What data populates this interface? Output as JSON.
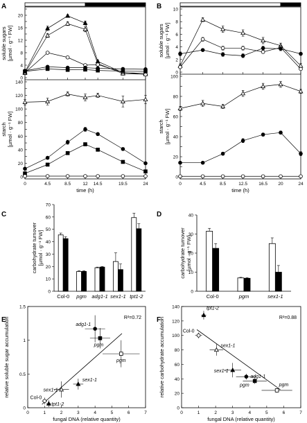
{
  "chart_data": [
    {
      "panel": "A",
      "type": "line",
      "x": [
        0,
        4.5,
        8.5,
        12,
        14.5,
        19.5,
        24
      ],
      "xlabel": "time (h)",
      "xticks": [
        0,
        4.5,
        8.5,
        12,
        14.5,
        19.5,
        24
      ],
      "xlim": [
        0,
        24
      ],
      "photoperiod": {
        "light": [
          0,
          12
        ],
        "dark": [
          12,
          24
        ]
      },
      "subplots": [
        {
          "ylabel": [
            "soluble sugars",
            "[µmol · g⁻¹ FW]"
          ],
          "ylim": [
            0,
            22
          ],
          "yticks": [
            0,
            2,
            4,
            6,
            8,
            10,
            12,
            14,
            16,
            18,
            20,
            22
          ],
          "series": [
            {
              "marker": "filled-triangle",
              "values": [
                1.8,
                15.8,
                19.8,
                17.5,
                5.2,
                1.6,
                1.4
              ],
              "err": [
                0.6,
                0.7,
                0.4,
                0.6,
                0.4,
                0.3,
                0.3
              ]
            },
            {
              "marker": "open-triangle",
              "values": [
                1.5,
                13.5,
                17.3,
                15.5,
                4.5,
                1.3,
                1.1
              ],
              "err": [
                0.4,
                0.6,
                0.6,
                0.8,
                0.4,
                0.3,
                0.3
              ]
            },
            {
              "marker": "open-circle",
              "values": [
                1.6,
                8.0,
                6.5,
                4.0,
                4.2,
                1.7,
                1.0
              ],
              "err": [
                0.3,
                0.3,
                0.4,
                0.3,
                0.4,
                0.3,
                0.3
              ]
            },
            {
              "marker": "filled-circle",
              "values": [
                2.2,
                3.5,
                3.2,
                3.2,
                3.0,
                2.8,
                2.7
              ],
              "err": [
                0.2,
                0.2,
                0.2,
                0.2,
                0.2,
                0.2,
                0.2
              ]
            },
            {
              "marker": "filled-square",
              "values": [
                2.0,
                2.8,
                2.5,
                2.6,
                2.3,
                2.1,
                2.0
              ],
              "err": [
                0.2,
                0.2,
                0.2,
                0.2,
                0.2,
                0.2,
                0.2
              ]
            }
          ]
        },
        {
          "ylabel": [
            "starch",
            "[µmol · g⁻¹ FW]"
          ],
          "ylim": [
            0,
            140
          ],
          "yticks": [
            0,
            10,
            20,
            30,
            40,
            50,
            60,
            70,
            80,
            90,
            100,
            110,
            120,
            130,
            140
          ],
          "series": [
            {
              "marker": "open-triangle",
              "values": [
                110,
                111,
                122,
                117,
                120,
                111,
                114
              ],
              "err": [
                4,
                5,
                3,
                5,
                3,
                8,
                6
              ]
            },
            {
              "marker": "filled-circle",
              "values": [
                12,
                28,
                51,
                70,
                63,
                41,
                20
              ],
              "err": [
                1.5,
                2,
                3,
                3,
                2,
                2,
                1.5
              ]
            },
            {
              "marker": "filled-square",
              "values": [
                5,
                18,
                35,
                48,
                40,
                22,
                8
              ],
              "err": [
                1,
                1.5,
                2,
                2,
                2,
                1.5,
                1
              ]
            },
            {
              "marker": "open-circle",
              "values": [
                1,
                1,
                1,
                1,
                1,
                1,
                1
              ],
              "err": [
                0.3,
                0.3,
                0.3,
                0.3,
                0.3,
                0.3,
                0.3
              ]
            }
          ]
        }
      ]
    },
    {
      "panel": "B",
      "type": "line",
      "x": [
        0,
        4.5,
        8.5,
        12.5,
        16.5,
        20,
        24
      ],
      "xlabel": "time (h)",
      "xticks": [
        0,
        4.5,
        8.5,
        12.5,
        16.5,
        20,
        24
      ],
      "xlim": [
        0,
        24
      ],
      "photoperiod": {
        "light": [
          0,
          20
        ],
        "dark": [
          20,
          24
        ]
      },
      "subplots": [
        {
          "ylabel": [
            "soluble sugars",
            "[µmol · g⁻¹ FW]"
          ],
          "ylim": [
            0,
            10
          ],
          "yticks": [
            0,
            1,
            2,
            3,
            4,
            5,
            6,
            7,
            8,
            9,
            10
          ],
          "series": [
            {
              "marker": "open-triangle",
              "values": [
                1.0,
                8.3,
                6.8,
                6.2,
                5.0,
                4.2,
                1.0
              ],
              "err": [
                0.3,
                0.3,
                0.5,
                0.5,
                0.5,
                0.4,
                0.4
              ]
            },
            {
              "marker": "open-circle",
              "values": [
                0.8,
                5.2,
                3.8,
                3.8,
                3.2,
                3.9,
                0.5
              ],
              "err": [
                0.2,
                0.3,
                0.3,
                0.3,
                0.2,
                0.3,
                0.2
              ]
            },
            {
              "marker": "filled-circle",
              "values": [
                2.9,
                3.5,
                2.8,
                2.6,
                3.8,
                3.7,
                2.9
              ],
              "err": [
                0.3,
                0.2,
                0.3,
                0.3,
                0.3,
                0.3,
                0.2
              ]
            }
          ]
        },
        {
          "ylabel": [
            "starch",
            "[µmol · g⁻¹ FW]"
          ],
          "ylim": [
            0,
            100
          ],
          "yticks": [
            0,
            10,
            20,
            30,
            40,
            50,
            60,
            70,
            80,
            90,
            100
          ],
          "series": [
            {
              "marker": "open-triangle",
              "values": [
                68,
                73,
                70,
                83,
                90,
                92,
                85
              ],
              "err": [
                2,
                3,
                2,
                3,
                3,
                3,
                2
              ]
            },
            {
              "marker": "filled-circle",
              "values": [
                14,
                14,
                23,
                36,
                42,
                44,
                23
              ],
              "err": [
                1,
                1,
                1.5,
                2,
                1.5,
                1.5,
                2
              ]
            },
            {
              "marker": "open-circle",
              "values": [
                0.5,
                0.5,
                0.5,
                0.5,
                0.5,
                0.5,
                0.5
              ],
              "err": [
                0.2,
                0.2,
                0.2,
                0.2,
                0.2,
                0.2,
                0.2
              ]
            }
          ]
        }
      ]
    },
    {
      "panel": "C",
      "type": "bar",
      "categories": [
        "Col-0",
        "pgm",
        "adg1-1",
        "sex1-1",
        "tpt1-2"
      ],
      "series": [
        {
          "fill": "white",
          "values": [
            45.5,
            16,
            19,
            24,
            59.5
          ],
          "err": [
            1.5,
            0.5,
            0.5,
            7,
            3.5
          ]
        },
        {
          "fill": "black",
          "values": [
            42.5,
            16,
            19.5,
            17.5,
            50.5
          ],
          "err": [
            1.5,
            0.5,
            0.5,
            4.5,
            4
          ]
        }
      ],
      "ylabel": [
        "carbohydrate turnover",
        "[µmol · g⁻¹ FW]"
      ],
      "ylim": [
        0,
        70
      ],
      "yticks": [
        0,
        10,
        20,
        30,
        40,
        50,
        60,
        70
      ]
    },
    {
      "panel": "D",
      "type": "bar",
      "categories": [
        "Col-0",
        "pgm",
        "sex1-1"
      ],
      "series": [
        {
          "fill": "white",
          "values": [
            31.5,
            7,
            25
          ],
          "err": [
            1.5,
            0.3,
            3
          ]
        },
        {
          "fill": "black",
          "values": [
            22.5,
            6.8,
            10
          ],
          "err": [
            2.5,
            0.3,
            3.5
          ]
        }
      ],
      "ylabel": [
        "carbohydrate turnover",
        "[µmol · g⁻¹ FW]"
      ],
      "ylim": [
        0,
        40
      ],
      "yticks": [
        0,
        10,
        20,
        30,
        40
      ]
    },
    {
      "panel": "E",
      "type": "scatter",
      "xlabel": "fungal DNA (relative quantity)",
      "ylabel": "relative soluble sugar accumulation",
      "xlim": [
        0,
        7
      ],
      "ylim": [
        0,
        1.5
      ],
      "xticks": [
        0,
        1,
        2,
        3,
        4,
        5,
        6,
        7
      ],
      "yticks": [
        0,
        0.5,
        1,
        1.5
      ],
      "r2_label": "R²=0.72",
      "fit_line": [
        [
          0.85,
          0.05
        ],
        [
          5.6,
          1.1
        ]
      ],
      "points": [
        {
          "label": "Col-0",
          "marker": "open-circle",
          "x": 1.0,
          "y": 0.1,
          "xerr": 0.15,
          "yerr": 0.05
        },
        {
          "label": "tpt1-2",
          "marker": "filled-triangle",
          "x": 1.25,
          "y": 0.06,
          "xerr": 0.15,
          "yerr": 0.05
        },
        {
          "label": "sex1-1",
          "marker": "open-triangle",
          "x": 2.0,
          "y": 0.27,
          "xerr": 0.45,
          "yerr": 0.12
        },
        {
          "label": "sex1-1",
          "marker": "filled-triangle",
          "x": 3.0,
          "y": 0.35,
          "xerr": 0.3,
          "yerr": 0.08
        },
        {
          "label": "adg1-1",
          "marker": "filled-circle",
          "x": 4.0,
          "y": 1.17,
          "xerr": 0.6,
          "yerr": 0.2
        },
        {
          "label": "pgm",
          "marker": "filled-square",
          "x": 4.3,
          "y": 1.03,
          "xerr": 0.6,
          "yerr": 0.15
        },
        {
          "label": "pgm",
          "marker": "open-square",
          "x": 5.55,
          "y": 0.8,
          "xerr": 1.1,
          "yerr": 0.2
        }
      ]
    },
    {
      "panel": "F",
      "type": "scatter",
      "xlabel": "fungal DNA (relative quantity)",
      "ylabel": "relative carbohydrate accumulation",
      "xlim": [
        0,
        7
      ],
      "ylim": [
        0,
        140
      ],
      "xticks": [
        0,
        1,
        2,
        3,
        4,
        5,
        6,
        7
      ],
      "yticks": [
        0,
        20,
        40,
        60,
        80,
        100,
        120,
        140
      ],
      "r2_label": "R²=0.88",
      "fit_line": [
        [
          0.9,
          108
        ],
        [
          5.8,
          25
        ]
      ],
      "points": [
        {
          "label": "tpt1-2",
          "marker": "filled-triangle",
          "x": 1.3,
          "y": 128,
          "xerr": 0.15,
          "yerr": 6
        },
        {
          "label": "Col-0",
          "marker": "open-circle",
          "x": 1.0,
          "y": 100,
          "xerr": 0.2,
          "yerr": 4
        },
        {
          "label": "sex1-1",
          "marker": "open-triangle",
          "x": 2.05,
          "y": 80,
          "xerr": 0.4,
          "yerr": 8
        },
        {
          "label": "sex1-1",
          "marker": "filled-triangle",
          "x": 3.0,
          "y": 52,
          "xerr": 0.5,
          "yerr": 10
        },
        {
          "label": "adg1-1",
          "marker": "filled-circle",
          "x": 3.8,
          "y": 43,
          "xerr": 0.6,
          "yerr": 4
        },
        {
          "label": "pgm",
          "marker": "filled-square",
          "x": 4.3,
          "y": 37,
          "xerr": 0.7,
          "yerr": 4
        },
        {
          "label": "pgm",
          "marker": "open-square",
          "x": 5.6,
          "y": 24,
          "xerr": 0.9,
          "yerr": 3
        }
      ]
    }
  ]
}
